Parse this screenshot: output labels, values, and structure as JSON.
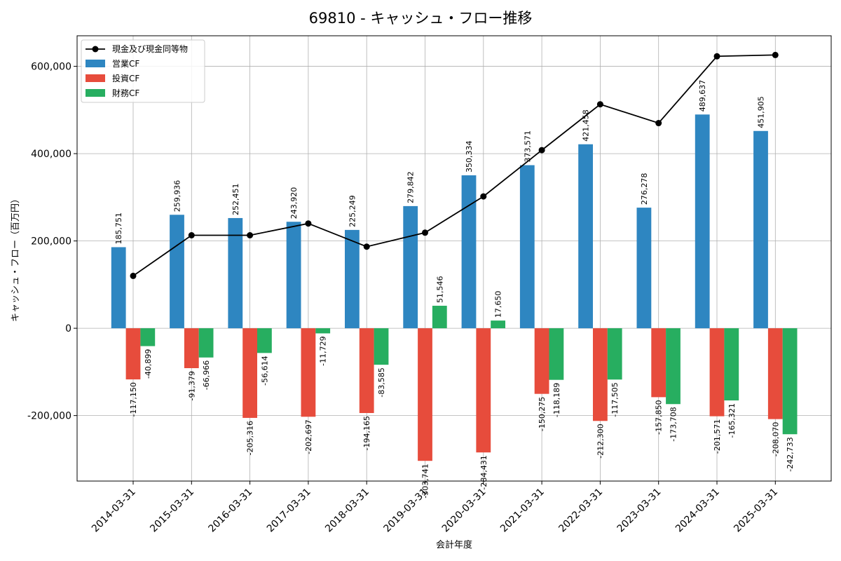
{
  "chart_data": {
    "type": "bar",
    "title": "69810 - キャッシュ・フロー推移",
    "xlabel": "会計年度",
    "ylabel": "キャッシュ・フロー（百万円）",
    "ylim": [
      -350000,
      670000
    ],
    "yticks": [
      -200000,
      0,
      200000,
      400000,
      600000
    ],
    "ytick_labels": [
      "-200,000",
      "0",
      "200,000",
      "400,000",
      "600,000"
    ],
    "grid": true,
    "legend_position": "top-left",
    "categories": [
      "2014-03-31",
      "2015-03-31",
      "2016-03-31",
      "2017-03-31",
      "2018-03-31",
      "2019-03-31",
      "2020-03-31",
      "2021-03-31",
      "2022-03-31",
      "2023-03-31",
      "2024-03-31",
      "2025-03-31"
    ],
    "series": [
      {
        "name": "営業CF",
        "kind": "bar",
        "color": "#2e86c1",
        "values": [
          185751,
          259936,
          252451,
          243920,
          225249,
          279842,
          350334,
          373571,
          421458,
          276278,
          489637,
          451905
        ],
        "labels": [
          "185,751",
          "259,936",
          "252,451",
          "243,920",
          "225,249",
          "279,842",
          "350,334",
          "373,571",
          "421,458",
          "276,278",
          "489,637",
          "451,905"
        ]
      },
      {
        "name": "投資CF",
        "kind": "bar",
        "color": "#e74c3c",
        "values": [
          -117150,
          -91379,
          -205316,
          -202697,
          -194165,
          -303741,
          -284431,
          -150275,
          -212300,
          -157850,
          -201571,
          -208070
        ],
        "labels": [
          "-117,150",
          "-91,379",
          "-205,316",
          "-202,697",
          "-194,165",
          "-303,741",
          "-284,431",
          "-150,275",
          "-212,300",
          "-157,850",
          "-201,571",
          "-208,070"
        ]
      },
      {
        "name": "財務CF",
        "kind": "bar",
        "color": "#27ae60",
        "values": [
          -40899,
          -66966,
          -56614,
          -11729,
          -83585,
          51546,
          17650,
          -118189,
          -117505,
          -173708,
          -165321,
          -242733
        ],
        "labels": [
          "-40,899",
          "-66,966",
          "-56,614",
          "-11,729",
          "-83,585",
          "51,546",
          "17,650",
          "-118,189",
          "-117,505",
          "-173,708",
          "-165,321",
          "-242,733"
        ]
      },
      {
        "name": "現金及び現金同等物",
        "kind": "line",
        "color": "#000000",
        "values": [
          120000,
          213000,
          213000,
          240000,
          187000,
          219000,
          302000,
          408000,
          513000,
          470000,
          623000,
          626000
        ]
      }
    ]
  }
}
